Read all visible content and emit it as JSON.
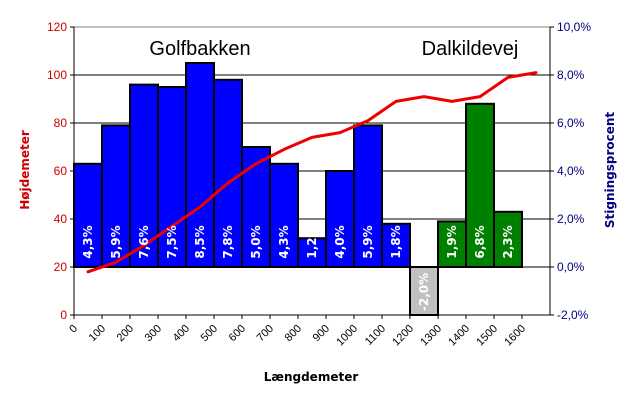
{
  "chart_data": {
    "type": "bar",
    "xlabel": "Længdemeter",
    "ylabel_left": "Højdemeter",
    "ylabel_right": "Stigningsprocent",
    "xlim": [
      0,
      1700
    ],
    "ylim_left": [
      0,
      120
    ],
    "ylim_right": [
      -2,
      10
    ],
    "x_ticks": [
      "0",
      "100",
      "200",
      "300",
      "400",
      "500",
      "600",
      "700",
      "800",
      "900",
      "1000",
      "1100",
      "1200",
      "1300",
      "1400",
      "1500",
      "1600"
    ],
    "left_ticks": [
      "0",
      "20",
      "40",
      "60",
      "80",
      "100",
      "120"
    ],
    "right_ticks": [
      "-2,0%",
      "0,0%",
      "2,0%",
      "4,0%",
      "6,0%",
      "8,0%",
      "10,0%"
    ],
    "grid": "horizontal",
    "section_labels": [
      {
        "text": "Golfbakken",
        "color": "#0000ff"
      },
      {
        "text": "Dalkildevej",
        "color": "#008000"
      }
    ],
    "series": [
      {
        "type": "bar",
        "axis": "right",
        "x": [
          50,
          150,
          250,
          350,
          450,
          550,
          650,
          750,
          850,
          950,
          1050,
          1150,
          1250,
          1350,
          1450,
          1550
        ],
        "values": [
          4.3,
          5.9,
          7.6,
          7.5,
          8.5,
          7.8,
          5.0,
          4.3,
          1.2,
          4.0,
          5.9,
          1.8,
          -2.0,
          1.9,
          6.8,
          2.3
        ],
        "labels": [
          "4,3%",
          "5,9%",
          "7,6%",
          "7,5%",
          "8,5%",
          "7,8%",
          "5,0%",
          "4,3%",
          "1,2%",
          "4,0%",
          "5,9%",
          "1,8%",
          "-2,0%",
          "1,9%",
          "6,8%",
          "2,3%"
        ],
        "colors": [
          "#0000ff",
          "#0000ff",
          "#0000ff",
          "#0000ff",
          "#0000ff",
          "#0000ff",
          "#0000ff",
          "#0000ff",
          "#0000ff",
          "#0000ff",
          "#0000ff",
          "#0000ff",
          "#c0c0c0",
          "#008000",
          "#008000",
          "#008000"
        ]
      },
      {
        "type": "line",
        "axis": "left",
        "color": "#ee0000",
        "x": [
          50,
          150,
          250,
          350,
          450,
          550,
          650,
          750,
          850,
          950,
          1050,
          1150,
          1250,
          1350,
          1450,
          1550,
          1650
        ],
        "values": [
          18,
          22,
          29,
          37,
          45,
          55,
          63,
          69,
          74,
          76,
          81,
          89,
          91,
          89,
          91,
          99,
          101
        ]
      }
    ]
  }
}
